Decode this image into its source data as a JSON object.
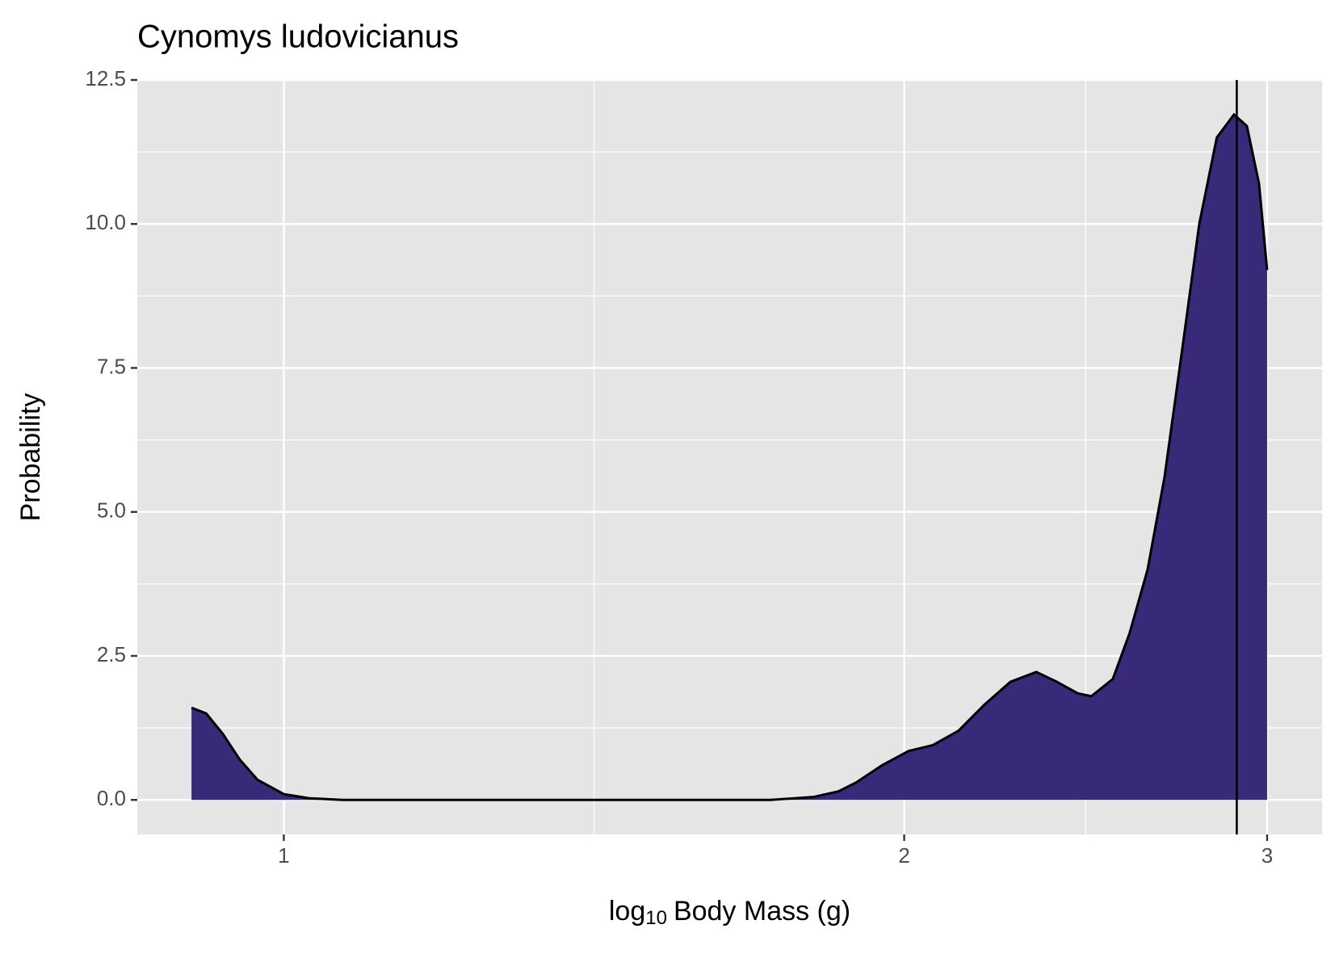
{
  "chart_data": {
    "type": "area",
    "title": "Cynomys ludovicianus",
    "xlabel": [
      "log",
      "10",
      "Body Mass (g)"
    ],
    "ylabel": "Probability",
    "x": [
      0.902,
      0.917,
      0.934,
      0.952,
      0.971,
      1.0,
      1.028,
      1.068,
      1.175,
      1.293,
      1.423,
      1.566,
      1.722,
      1.807,
      1.859,
      1.895,
      1.951,
      2.01,
      2.065,
      2.125,
      2.187,
      2.252,
      2.318,
      2.372,
      2.428,
      2.465,
      2.525,
      2.573,
      2.625,
      2.675,
      2.728,
      2.781,
      2.836,
      2.891,
      2.933,
      2.973,
      3.0
    ],
    "series": [
      {
        "color": "#382a78",
        "line_color": "#000000",
        "values": [
          1.6,
          1.5,
          1.15,
          0.7,
          0.35,
          0.1,
          0.03,
          0,
          0,
          0,
          0,
          0,
          0,
          0.05,
          0.15,
          0.3,
          0.6,
          0.85,
          0.95,
          1.2,
          1.65,
          2.05,
          2.22,
          2.05,
          1.85,
          1.8,
          2.1,
          2.9,
          4.0,
          5.6,
          7.8,
          10.0,
          11.5,
          11.9,
          11.7,
          10.7,
          9.2
        ]
      }
    ],
    "vline": 2.9,
    "xscale": "log",
    "xlim": [
      0.849,
      3.19
    ],
    "xticks": [
      1,
      2,
      3
    ],
    "ylim": [
      -0.6,
      12.5
    ],
    "yticks": [
      {
        "value": 0,
        "label": "0.0"
      },
      2.5,
      {
        "value": 5,
        "label": "5.0"
      },
      7.5,
      {
        "value": 10,
        "label": "10.0"
      },
      12.5
    ],
    "grid": true
  }
}
